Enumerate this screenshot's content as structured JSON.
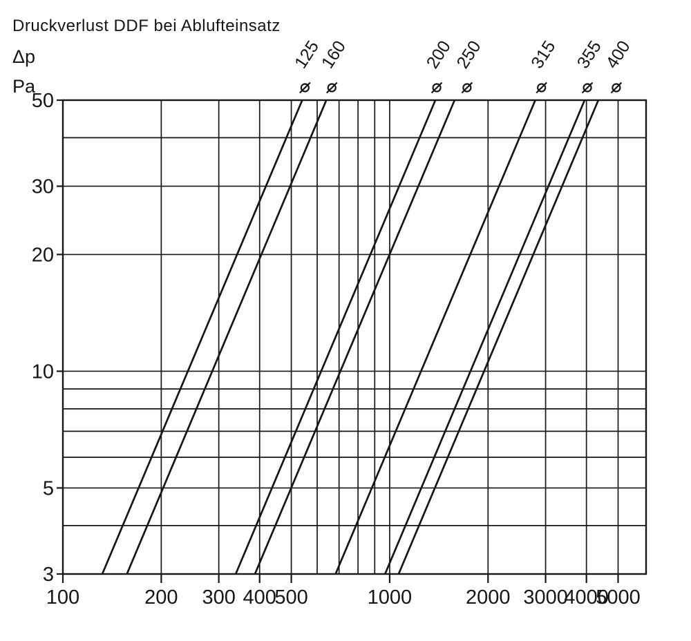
{
  "page": {
    "background": "#ffffff",
    "ink_color": "#161616"
  },
  "chart_data": {
    "type": "line",
    "scale": "log-log",
    "title": "Druckverlust DDF bei Ablufteinsatz",
    "grid": true,
    "legend_position": "top",
    "diameter_symbol": "ø",
    "y_axis": {
      "label_lines": [
        "Δp",
        "Pa"
      ],
      "min": 3,
      "max": 50,
      "tick_labels": [
        50,
        30,
        20,
        10,
        5,
        3
      ],
      "gridlines": [
        50,
        40,
        30,
        20,
        10,
        9,
        8,
        7,
        6,
        5,
        4,
        3
      ]
    },
    "x_axis": {
      "min": 100,
      "max": 6090,
      "tick_labels": [
        100,
        200,
        300,
        400,
        500,
        1000,
        2000,
        3000,
        4000,
        5000
      ],
      "gridlines": [
        100,
        200,
        300,
        400,
        500,
        600,
        700,
        800,
        900,
        1000,
        2000,
        3000,
        4000,
        5000
      ]
    },
    "series": [
      {
        "label": "125",
        "points": [
          [
            132,
            3
          ],
          [
            540,
            50
          ]
        ]
      },
      {
        "label": "160",
        "points": [
          [
            157,
            3
          ],
          [
            640,
            50
          ]
        ]
      },
      {
        "label": "200",
        "points": [
          [
            338,
            3
          ],
          [
            1380,
            50
          ]
        ]
      },
      {
        "label": "250",
        "points": [
          [
            387,
            3
          ],
          [
            1580,
            50
          ]
        ]
      },
      {
        "label": "315",
        "points": [
          [
            683,
            3
          ],
          [
            2790,
            50
          ]
        ]
      },
      {
        "label": "355",
        "points": [
          [
            968,
            3
          ],
          [
            3950,
            50
          ]
        ]
      },
      {
        "label": "400",
        "points": [
          [
            1065,
            3
          ],
          [
            4350,
            50
          ]
        ]
      }
    ]
  }
}
